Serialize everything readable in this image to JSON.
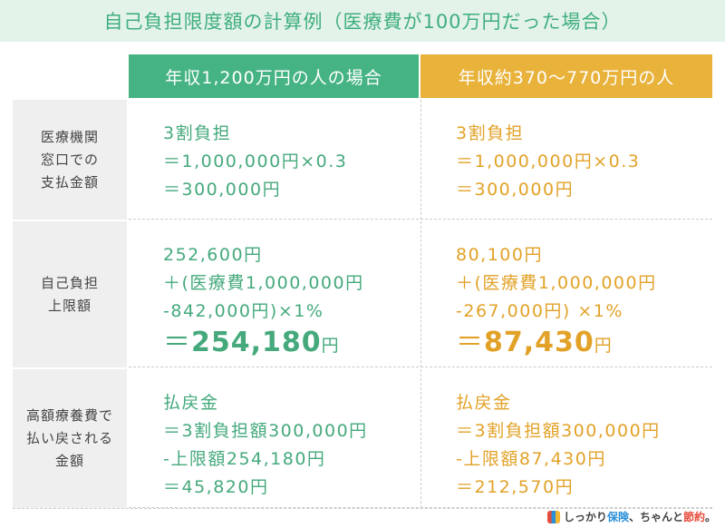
{
  "title": "自己負担限度額の計算例（医療費が100万円だった場合）",
  "table": {
    "headers": [
      "年収1,200万円の人の場合",
      "年収約370〜770万円の人"
    ],
    "rows": [
      {
        "label": [
          "医療機関",
          "窓口での",
          "支払金額"
        ],
        "cells": [
          [
            "3割負担",
            "＝1,000,000円×0.3",
            "＝300,000円"
          ],
          [
            "3割負担",
            "＝1,000,000円×0.3",
            "＝300,000円"
          ]
        ]
      },
      {
        "label": [
          "自己負担",
          "上限額"
        ],
        "cells": [
          [
            "252,600円",
            "＋(医療費1,000,000円",
            "-842,000円)×1%",
            {
              "prefix": "＝",
              "amount": "254,180",
              "unit": "円"
            }
          ],
          [
            "80,100円",
            "＋(医療費1,000,000円",
            "-267,000円) ×1%",
            {
              "prefix": "＝",
              "amount": "87,430",
              "unit": "円"
            }
          ]
        ]
      },
      {
        "label": [
          "高額療養費で",
          "払い戻される",
          "金額"
        ],
        "cells": [
          [
            "払戻金",
            "＝3割負担額300,000円",
            "-上限額254,180円",
            "＝45,820円"
          ],
          [
            "払戻金",
            "＝3割負担額300,000円",
            "-上限額87,430円",
            "＝212,570円"
          ]
        ]
      }
    ]
  },
  "footer": {
    "brand": [
      "しっかり",
      "保険",
      "、ちゃんと",
      "節約",
      "。"
    ]
  }
}
